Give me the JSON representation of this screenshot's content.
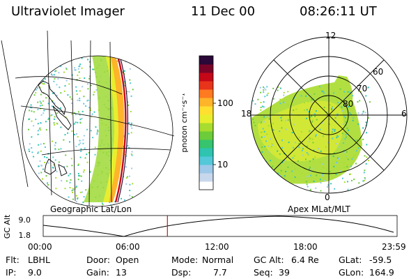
{
  "header": {
    "instrument": "Ultraviolet Imager",
    "date": "11 Dec 00",
    "time": "08:26:11 UT"
  },
  "panels": {
    "left_label": "Geographic Lat/Lon",
    "right_label": "Apex MLat/MLT"
  },
  "colorbar": {
    "unit_label": "photon cm⁻²s⁻¹",
    "tick_labels": [
      "100",
      "10"
    ],
    "colors": [
      "#ffffff",
      "#c8d8ec",
      "#9ec8e8",
      "#52c8d8",
      "#2ec4b0",
      "#36c46e",
      "#6ccc3a",
      "#a8dc2e",
      "#e8ee2e",
      "#ffe030",
      "#ffb42a",
      "#ff7a20",
      "#e8341a",
      "#c40818",
      "#7a0428",
      "#2a0838"
    ]
  },
  "polar": {
    "mlt_labels": [
      "12",
      "18",
      "6",
      "0"
    ],
    "mlat_labels": [
      "60",
      "70",
      "80"
    ]
  },
  "timeline": {
    "ylabel": "GC Alt",
    "ytick_labels": [
      "9.0",
      "1.8"
    ],
    "xtick_labels": [
      "00:00",
      "06:00",
      "12:00",
      "18:00",
      "23:59"
    ],
    "current_time_fraction": 0.351,
    "marker_color": "#c01818"
  },
  "info": {
    "filter_label": "Flt:",
    "filter_value": "LBHL",
    "ip_label": "IP:",
    "ip_value": "9.0",
    "door_label": "Door:",
    "door_value": "Open",
    "gain_label": "Gain:",
    "gain_value": "13",
    "mode_label": "Mode:",
    "mode_value": "Normal",
    "dsp_label": "Dsp:",
    "dsp_value": "7.7",
    "gcalt_label": "GC Alt:",
    "gcalt_value": "6.4 Re",
    "seq_label": "Seq:",
    "seq_value": "39",
    "glat_label": "GLat:",
    "glat_value": "-59.5",
    "glon_label": "GLon:",
    "glon_value": "164.9"
  }
}
